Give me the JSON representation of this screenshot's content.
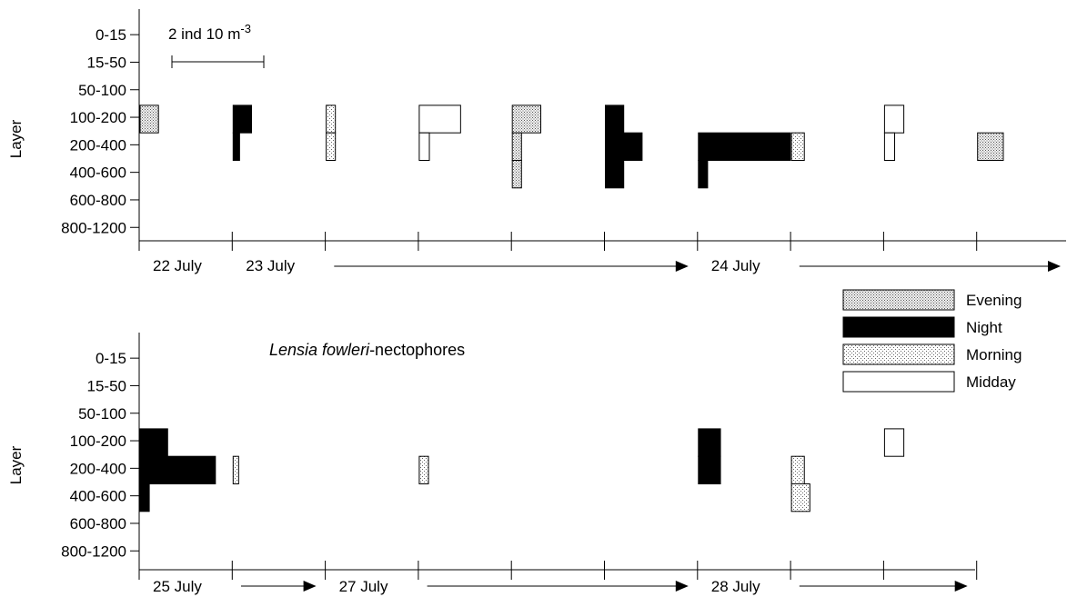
{
  "chart_data": {
    "type": "bar",
    "title": "Lensia fowleri-nectophores",
    "title_italic": "Lensia fowleri",
    "title_rest": "-nectophores",
    "ylabel": "Layer",
    "layers": [
      "0-15",
      "15-50",
      "50-100",
      "100-200",
      "200-400",
      "400-600",
      "600-800",
      "800-1200"
    ],
    "scale_bar_label": "2 ind 10 m",
    "scale_bar_exponent": "-3",
    "scale_bar_value": 2,
    "legend": [
      {
        "name": "Evening",
        "key": "evening",
        "fill": "#c8c8c8"
      },
      {
        "name": "Night",
        "key": "night",
        "fill": "#000000"
      },
      {
        "name": "Morning",
        "key": "morning",
        "fill": "#e8e8e8"
      },
      {
        "name": "Midday",
        "key": "midday",
        "fill": "#ffffff"
      }
    ],
    "panels": [
      {
        "date_labels": [
          {
            "text": "22 July",
            "slot": 0
          },
          {
            "text": "23 July",
            "slot": 1,
            "arrow_to_slot": 6
          },
          {
            "text": "24 July",
            "slot": 6,
            "arrow_to_slot": 10
          }
        ],
        "samples": [
          {
            "slot": 0,
            "period": "evening",
            "values": {
              "100-200": 2.0
            }
          },
          {
            "slot": 1,
            "period": "night",
            "values": {
              "100-200": 2.0,
              "200-400": 0.7
            }
          },
          {
            "slot": 2,
            "period": "morning",
            "values": {
              "100-200": 1.0,
              "200-400": 1.0
            }
          },
          {
            "slot": 3,
            "period": "midday",
            "values": {
              "100-200": 4.5,
              "200-400": 1.1
            }
          },
          {
            "slot": 4,
            "period": "evening",
            "values": {
              "100-200": 3.1,
              "200-400": 1.0,
              "400-600": 1.0
            }
          },
          {
            "slot": 5,
            "period": "night",
            "values": {
              "100-200": 2.0,
              "200-400": 4.0,
              "400-600": 2.0
            }
          },
          {
            "slot": 6,
            "period": "night",
            "values": {
              "200-400": 10.0,
              "400-600": 1.0
            }
          },
          {
            "slot": 7,
            "period": "morning",
            "values": {
              "200-400": 1.4
            }
          },
          {
            "slot": 8,
            "period": "midday",
            "values": {
              "100-200": 2.1,
              "200-400": 1.1
            }
          },
          {
            "slot": 9,
            "period": "evening",
            "values": {
              "200-400": 2.8
            }
          }
        ]
      },
      {
        "date_labels": [
          {
            "text": "25 July",
            "slot": 0,
            "arrow_to_slot": 2
          },
          {
            "text": "27 July",
            "slot": 2,
            "arrow_to_slot": 6
          },
          {
            "text": "28 July",
            "slot": 6,
            "arrow_to_slot": 9
          }
        ],
        "samples": [
          {
            "slot": 0,
            "period": "night",
            "values": {
              "100-200": 3.0,
              "200-400": 8.2,
              "400-600": 1.0
            }
          },
          {
            "slot": 1,
            "period": "morning",
            "values": {
              "200-400": 0.6
            }
          },
          {
            "slot": 3,
            "period": "morning",
            "values": {
              "200-400": 1.0
            }
          },
          {
            "slot": 6,
            "period": "night",
            "values": {
              "100-200": 2.4,
              "200-400": 2.4
            }
          },
          {
            "slot": 7,
            "period": "morning",
            "values": {
              "200-400": 1.4,
              "400-600": 2.0
            }
          },
          {
            "slot": 8,
            "period": "midday",
            "values": {
              "100-200": 2.1
            }
          }
        ]
      }
    ]
  }
}
